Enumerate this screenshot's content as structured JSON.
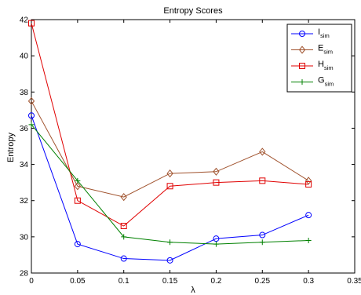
{
  "chart_data": {
    "type": "line",
    "title": "Entropy Scores",
    "xlabel": "λ",
    "ylabel": "Entropy",
    "xlim": [
      0,
      0.35
    ],
    "ylim": [
      28,
      42
    ],
    "xticks": [
      0,
      0.05,
      0.1,
      0.15,
      0.2,
      0.25,
      0.3,
      0.35
    ],
    "xtick_labels": [
      "0",
      "0.05",
      "0.1",
      "0.15",
      "0.2",
      "0.25",
      "0.3",
      "0.35"
    ],
    "yticks": [
      28,
      30,
      32,
      34,
      36,
      38,
      40,
      42
    ],
    "ytick_labels": [
      "28",
      "30",
      "32",
      "34",
      "36",
      "38",
      "40",
      "42"
    ],
    "x": [
      0,
      0.05,
      0.1,
      0.15,
      0.2,
      0.25,
      0.3
    ],
    "grid": false,
    "legend_position": "top-right",
    "series": [
      {
        "name": "I",
        "subscript": "sim",
        "color": "#0000ff",
        "marker": "circle",
        "values": [
          36.7,
          29.6,
          28.8,
          28.7,
          29.9,
          30.1,
          31.2
        ]
      },
      {
        "name": "E",
        "subscript": "sim",
        "color": "#a0522d",
        "marker": "diamond",
        "values": [
          37.5,
          32.8,
          32.2,
          33.5,
          33.6,
          34.7,
          33.1
        ]
      },
      {
        "name": "H",
        "subscript": "sim",
        "color": "#e00000",
        "marker": "square",
        "values": [
          41.8,
          32.0,
          30.6,
          32.8,
          33.0,
          33.1,
          32.9
        ]
      },
      {
        "name": "G",
        "subscript": "sim",
        "color": "#008000",
        "marker": "plus",
        "values": [
          36.2,
          33.1,
          30.0,
          29.7,
          29.6,
          29.7,
          29.8
        ]
      }
    ]
  }
}
